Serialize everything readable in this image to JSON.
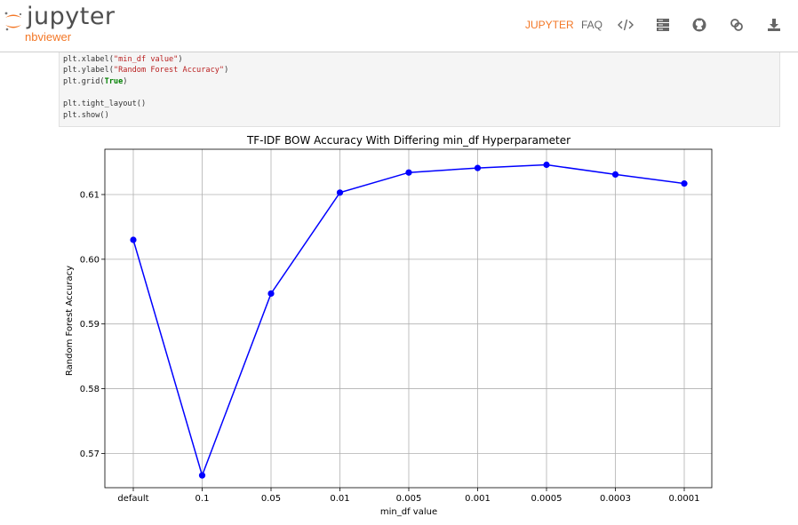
{
  "navbar": {
    "brand_name": "jupyter",
    "brand_sub": "nbviewer",
    "links": [
      {
        "label": "JUPYTER",
        "active": true
      },
      {
        "label": "FAQ",
        "active": false
      }
    ],
    "icons": [
      "code-icon",
      "server-icon",
      "github-icon",
      "link-icon",
      "download-icon"
    ],
    "accent_color": "#f37726"
  },
  "code_cell": {
    "lines": [
      [
        {
          "t": "plt.xlabel("
        },
        {
          "t": "\"min_df value\"",
          "c": "str"
        },
        {
          "t": ")"
        }
      ],
      [
        {
          "t": "plt.ylabel("
        },
        {
          "t": "\"Random Forest Accuracy\"",
          "c": "str"
        },
        {
          "t": ")"
        }
      ],
      [
        {
          "t": "plt.grid("
        },
        {
          "t": "True",
          "c": "kw"
        },
        {
          "t": ")"
        }
      ],
      [],
      [
        {
          "t": "plt.tight_layout()"
        }
      ],
      [
        {
          "t": "plt.show()"
        }
      ]
    ]
  },
  "chart_data": {
    "type": "line",
    "title": "TF-IDF BOW Accuracy With Differing min_df Hyperparameter",
    "xlabel": "min_df value",
    "ylabel": "Random Forest Accuracy",
    "categories": [
      "default",
      "0.1",
      "0.05",
      "0.01",
      "0.005",
      "0.001",
      "0.0005",
      "0.0003",
      "0.0001"
    ],
    "series": [
      {
        "values": [
          0.603,
          0.5666,
          0.5947,
          0.6103,
          0.6134,
          0.6141,
          0.6146,
          0.6131,
          0.6117
        ],
        "color": "#0000ff",
        "marker": "circle"
      }
    ],
    "ylim": [
      0.5647,
      0.617
    ],
    "yticks": [
      0.57,
      0.58,
      0.59,
      0.6,
      0.61
    ],
    "grid": true
  }
}
